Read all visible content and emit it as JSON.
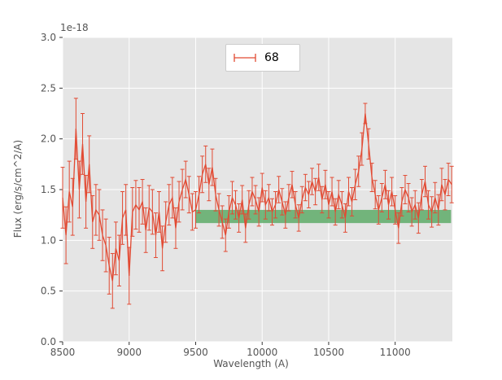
{
  "chart_data": {
    "type": "line",
    "title": "",
    "xlabel": "Wavelength (A)",
    "ylabel": "Flux (erg/s/cm^2/A)",
    "offset_text": "1e-18",
    "xlim": [
      8500,
      11430
    ],
    "ylim": [
      0.0,
      3.0
    ],
    "grid": true,
    "legend_position": "upper center",
    "xticks": [
      {
        "value": 8500,
        "label": "8500"
      },
      {
        "value": 9000,
        "label": "9000"
      },
      {
        "value": 9500,
        "label": "9500"
      },
      {
        "value": 10000,
        "label": "10000"
      },
      {
        "value": 10500,
        "label": "10500"
      },
      {
        "value": 11000,
        "label": "11000"
      }
    ],
    "yticks": [
      {
        "value": 0.0,
        "label": "0.0"
      },
      {
        "value": 0.5,
        "label": "0.5"
      },
      {
        "value": 1.0,
        "label": "1.0"
      },
      {
        "value": 1.5,
        "label": "1.5"
      },
      {
        "value": 2.0,
        "label": "2.0"
      },
      {
        "value": 2.5,
        "label": "2.5"
      },
      {
        "value": 3.0,
        "label": "3.0"
      }
    ],
    "legend": {
      "label": "68"
    },
    "colors": {
      "axes_bg": "#e5e5e5",
      "grid": "#ffffff",
      "tick": "#333333",
      "tick_label": "#555555",
      "line": "#e24a33",
      "band": "#55a860"
    },
    "band": {
      "x0": 9500,
      "x1": 11420,
      "y0": 1.17,
      "y1": 1.3,
      "color": "#55a860",
      "opacity": 0.8
    },
    "series": [
      {
        "name": "68",
        "color": "#e24a33",
        "x": [
          8500,
          8525,
          8550,
          8575,
          8600,
          8625,
          8650,
          8675,
          8700,
          8725,
          8750,
          8775,
          8800,
          8825,
          8850,
          8875,
          8900,
          8925,
          8950,
          8975,
          9000,
          9025,
          9050,
          9075,
          9100,
          9125,
          9150,
          9175,
          9200,
          9225,
          9250,
          9275,
          9300,
          9325,
          9350,
          9375,
          9400,
          9425,
          9450,
          9475,
          9500,
          9525,
          9550,
          9575,
          9600,
          9625,
          9650,
          9675,
          9700,
          9725,
          9750,
          9775,
          9800,
          9825,
          9850,
          9875,
          9900,
          9925,
          9950,
          9975,
          10000,
          10025,
          10050,
          10075,
          10100,
          10125,
          10150,
          10175,
          10200,
          10225,
          10250,
          10275,
          10300,
          10325,
          10350,
          10375,
          10400,
          10425,
          10450,
          10475,
          10500,
          10525,
          10550,
          10575,
          10600,
          10625,
          10650,
          10675,
          10700,
          10725,
          10750,
          10775,
          10800,
          10825,
          10850,
          10875,
          10900,
          10925,
          10950,
          10975,
          11000,
          11025,
          11050,
          11075,
          11100,
          11125,
          11150,
          11175,
          11200,
          11225,
          11250,
          11275,
          11300,
          11325,
          11350,
          11375,
          11400,
          11425
        ],
        "flux": [
          1.42,
          1.05,
          1.48,
          1.33,
          2.1,
          1.5,
          1.95,
          1.38,
          1.75,
          1.18,
          1.3,
          1.25,
          1.05,
          0.95,
          0.75,
          0.6,
          0.92,
          0.8,
          1.22,
          1.3,
          0.65,
          1.28,
          1.35,
          1.3,
          1.38,
          1.1,
          1.32,
          1.28,
          1.05,
          1.28,
          0.92,
          1.18,
          1.35,
          1.42,
          1.12,
          1.38,
          1.5,
          1.6,
          1.45,
          1.28,
          1.3,
          1.45,
          1.65,
          1.75,
          1.55,
          1.72,
          1.45,
          1.3,
          1.18,
          1.05,
          1.28,
          1.42,
          1.35,
          1.22,
          1.4,
          1.12,
          1.35,
          1.48,
          1.4,
          1.28,
          1.52,
          1.35,
          1.42,
          1.28,
          1.35,
          1.5,
          1.38,
          1.25,
          1.42,
          1.55,
          1.35,
          1.22,
          1.4,
          1.52,
          1.45,
          1.58,
          1.48,
          1.62,
          1.4,
          1.55,
          1.35,
          1.48,
          1.28,
          1.45,
          1.35,
          1.22,
          1.48,
          1.38,
          1.55,
          1.68,
          1.9,
          2.25,
          1.95,
          1.62,
          1.45,
          1.3,
          1.42,
          1.55,
          1.35,
          1.48,
          1.3,
          1.12,
          1.38,
          1.5,
          1.42,
          1.28,
          1.35,
          1.22,
          1.45,
          1.58,
          1.35,
          1.28,
          1.42,
          1.3,
          1.55,
          1.45,
          1.6,
          1.55
        ],
        "err": [
          0.3,
          0.28,
          0.3,
          0.28,
          0.3,
          0.28,
          0.3,
          0.26,
          0.28,
          0.26,
          0.25,
          0.25,
          0.25,
          0.26,
          0.28,
          0.27,
          0.26,
          0.25,
          0.26,
          0.25,
          0.28,
          0.24,
          0.24,
          0.22,
          0.22,
          0.22,
          0.22,
          0.22,
          0.22,
          0.2,
          0.22,
          0.2,
          0.2,
          0.2,
          0.2,
          0.2,
          0.2,
          0.18,
          0.18,
          0.18,
          0.18,
          0.18,
          0.18,
          0.18,
          0.16,
          0.18,
          0.16,
          0.16,
          0.16,
          0.16,
          0.16,
          0.16,
          0.14,
          0.14,
          0.14,
          0.14,
          0.14,
          0.14,
          0.14,
          0.14,
          0.14,
          0.14,
          0.13,
          0.13,
          0.13,
          0.13,
          0.13,
          0.13,
          0.13,
          0.13,
          0.13,
          0.13,
          0.13,
          0.13,
          0.13,
          0.13,
          0.13,
          0.13,
          0.13,
          0.14,
          0.13,
          0.14,
          0.13,
          0.14,
          0.13,
          0.14,
          0.14,
          0.14,
          0.15,
          0.15,
          0.16,
          0.1,
          0.15,
          0.14,
          0.14,
          0.14,
          0.14,
          0.14,
          0.14,
          0.14,
          0.14,
          0.15,
          0.14,
          0.14,
          0.14,
          0.14,
          0.14,
          0.15,
          0.15,
          0.15,
          0.14,
          0.15,
          0.15,
          0.15,
          0.16,
          0.15,
          0.16,
          0.18
        ]
      }
    ]
  }
}
